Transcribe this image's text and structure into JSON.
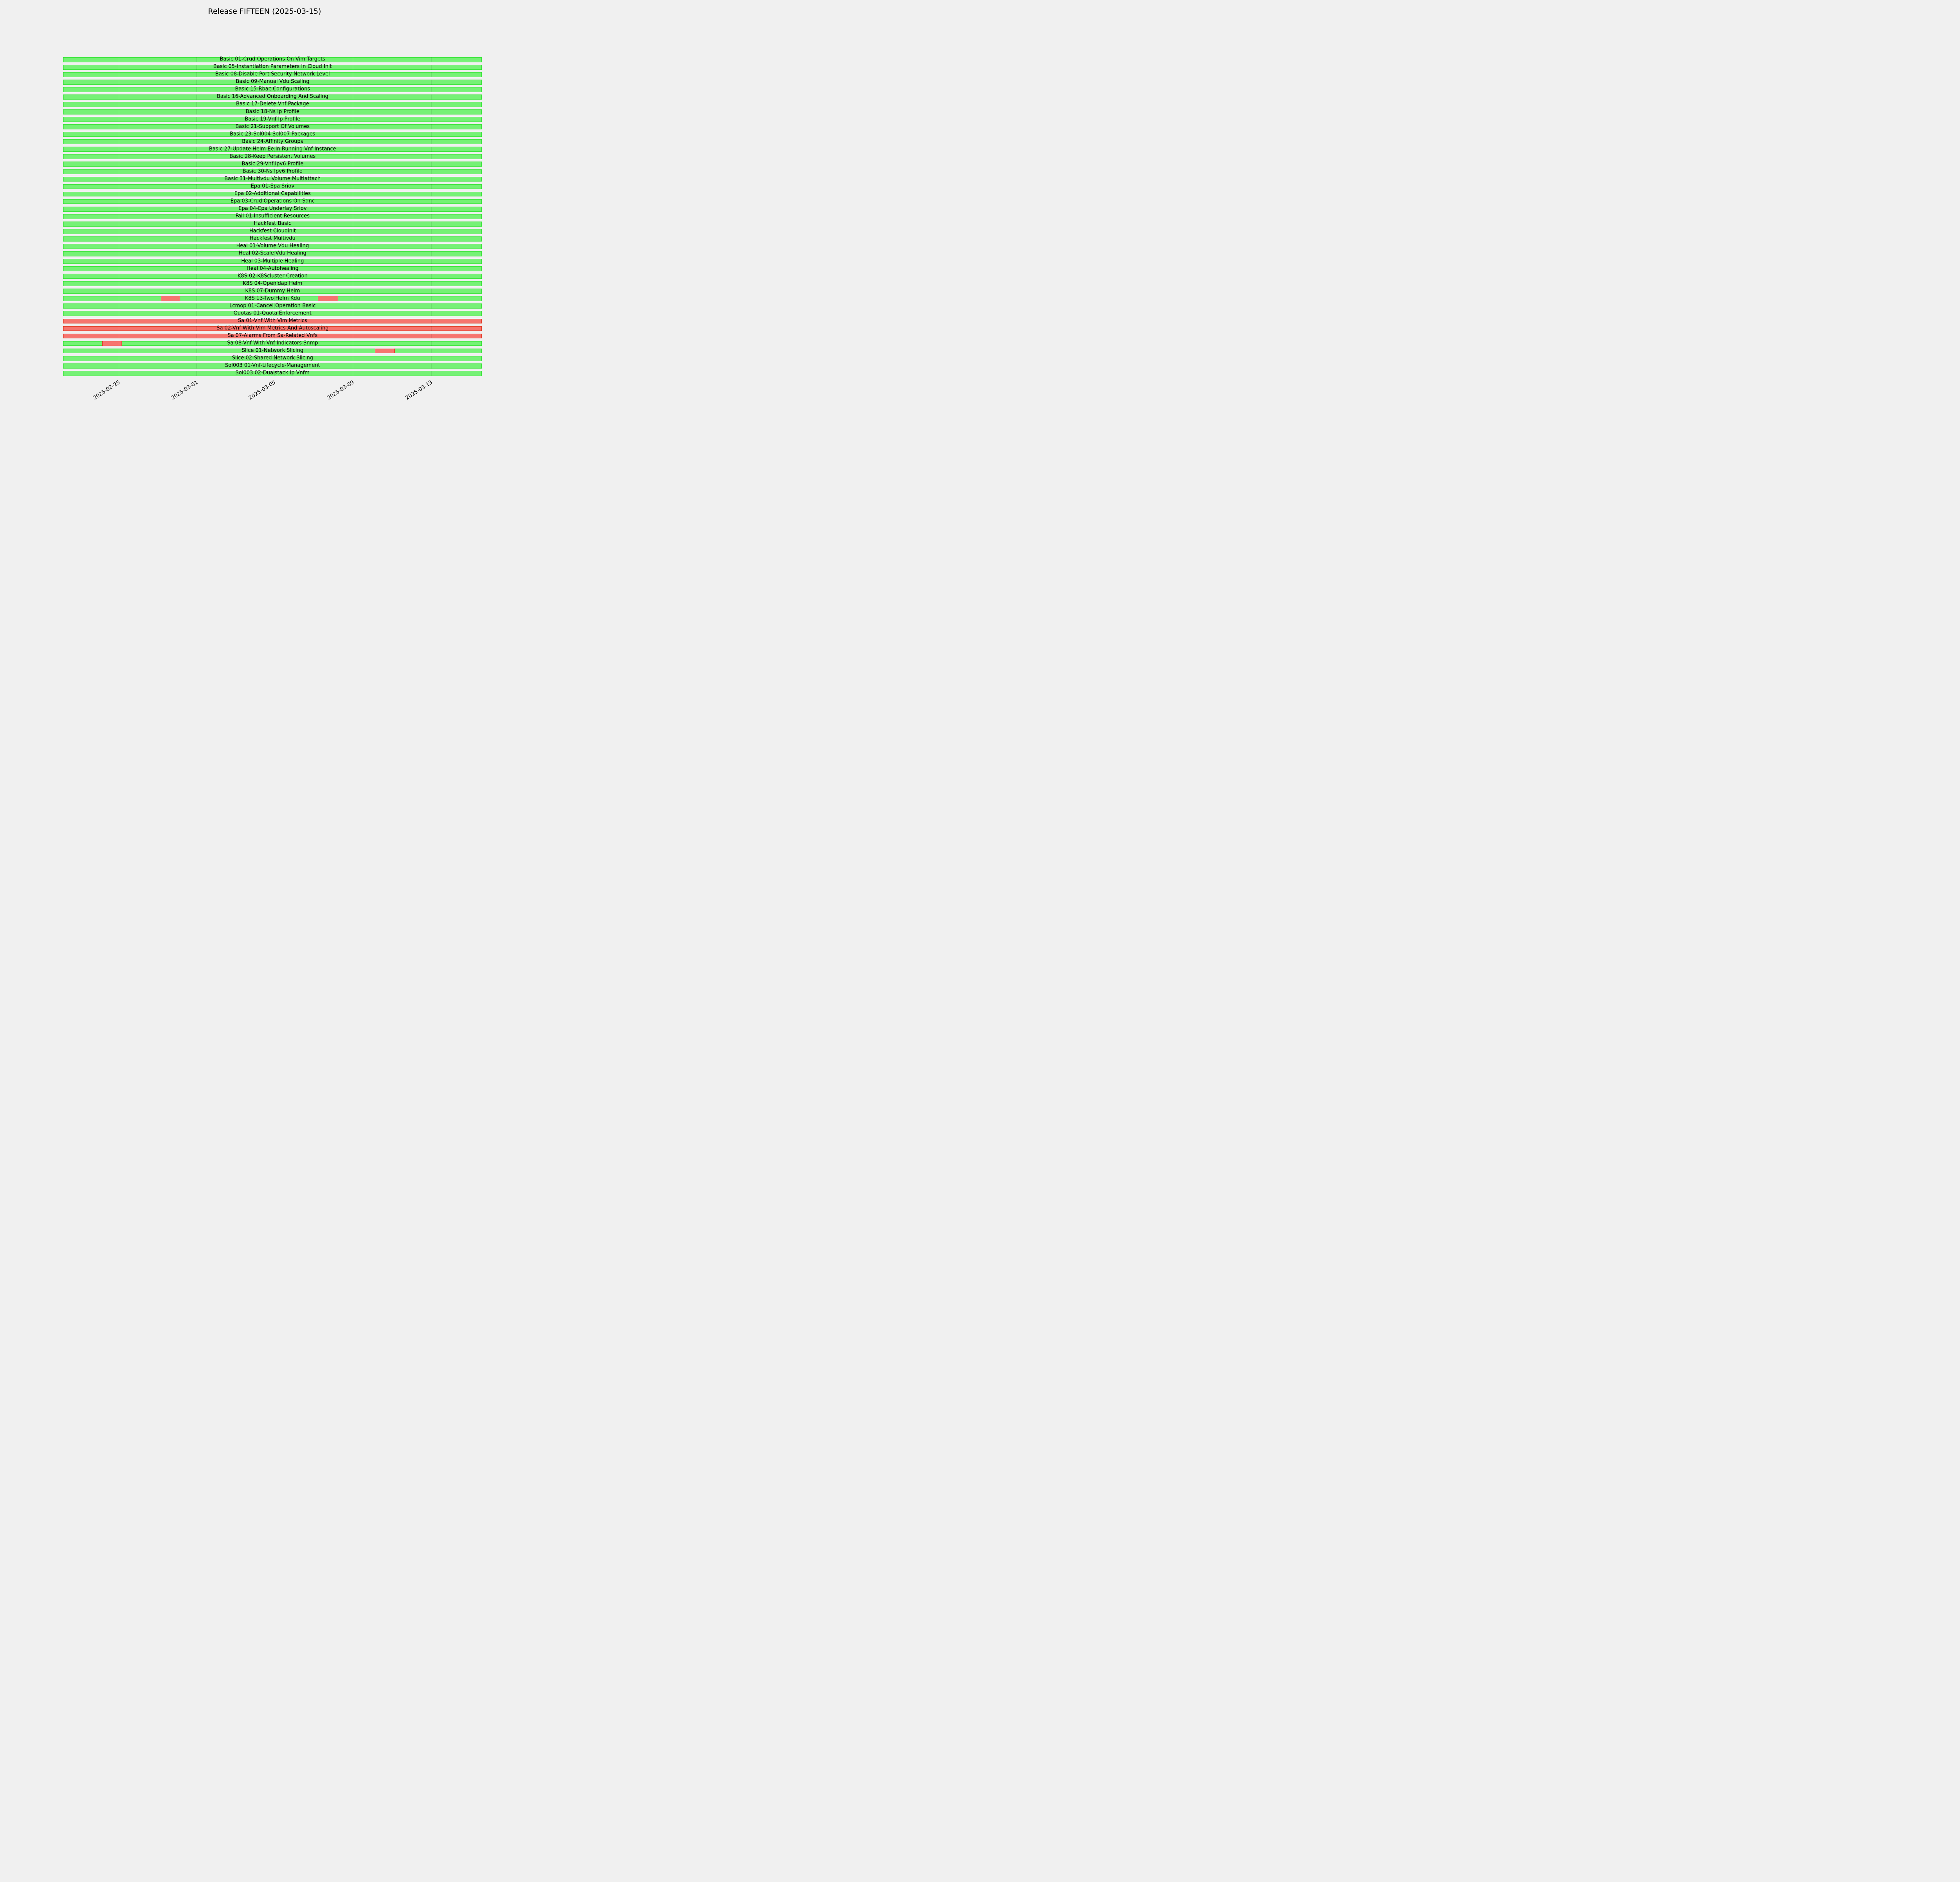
{
  "figure": {
    "title": "Release FIFTEEN (2025-03-15)",
    "background_color": "#F0F0F0"
  },
  "chart_data": {
    "type": "bar",
    "subtype": "gantt-status-timeline",
    "title": "Release FIFTEEN (2025-03-15)",
    "xlabel": "",
    "ylabel": "",
    "legend": "none",
    "grid": true,
    "x_axis": {
      "tick_rotation_deg": 30,
      "range_estimate": [
        "2025-02-22",
        "2025-03-16"
      ],
      "ticks": [
        {
          "label": "2025-02-25",
          "pos": 0.133
        },
        {
          "label": "2025-03-01",
          "pos": 0.319
        },
        {
          "label": "2025-03-05",
          "pos": 0.505
        },
        {
          "label": "2025-03-09",
          "pos": 0.692
        },
        {
          "label": "2025-03-13",
          "pos": 0.879
        }
      ]
    },
    "colors": {
      "pass_fill": "#76F176",
      "pass_edge": "#3BE43B",
      "fail_fill": "#F6756F",
      "fail_edge": "#E0402A",
      "gridline": "rgba(0,0,0,0.10)",
      "background": "#F0F0F0",
      "text": "#000000"
    },
    "rows": [
      {
        "label": "Basic 01-Crud Operations On Vim Targets",
        "fail_segments": []
      },
      {
        "label": "Basic 05-Instantiation Parameters In Cloud Init",
        "fail_segments": []
      },
      {
        "label": "Basic 08-Disable Port Security Network Level",
        "fail_segments": []
      },
      {
        "label": "Basic 09-Manual Vdu Scaling",
        "fail_segments": []
      },
      {
        "label": "Basic 15-Rbac Configurations",
        "fail_segments": []
      },
      {
        "label": "Basic 16-Advanced Onboarding And Scaling",
        "fail_segments": []
      },
      {
        "label": "Basic 17-Delete Vnf Package",
        "fail_segments": []
      },
      {
        "label": "Basic 18-Ns Ip Profile",
        "fail_segments": []
      },
      {
        "label": "Basic 19-Vnf Ip Profile",
        "fail_segments": []
      },
      {
        "label": "Basic 21-Support Of Volumes",
        "fail_segments": []
      },
      {
        "label": "Basic 23-Sol004 Sol007 Packages",
        "fail_segments": []
      },
      {
        "label": "Basic 24-Affinity Groups",
        "fail_segments": []
      },
      {
        "label": "Basic 27-Update Helm Ee In Running Vnf Instance",
        "fail_segments": []
      },
      {
        "label": "Basic 28-Keep Persistent Volumes",
        "fail_segments": []
      },
      {
        "label": "Basic 29-Vnf Ipv6 Profile",
        "fail_segments": []
      },
      {
        "label": "Basic 30-Ns Ipv6 Profile",
        "fail_segments": []
      },
      {
        "label": "Basic 31-Multivdu Volume Multiattach",
        "fail_segments": []
      },
      {
        "label": "Epa 01-Epa Sriov",
        "fail_segments": []
      },
      {
        "label": "Epa 02-Additional Capabilities",
        "fail_segments": []
      },
      {
        "label": "Epa 03-Crud Operations On Sdnc",
        "fail_segments": []
      },
      {
        "label": "Epa 04-Epa Underlay Sriov",
        "fail_segments": []
      },
      {
        "label": "Fail 01-Insufficient Resources",
        "fail_segments": []
      },
      {
        "label": "Hackfest Basic",
        "fail_segments": []
      },
      {
        "label": "Hackfest Cloudinit",
        "fail_segments": []
      },
      {
        "label": "Hackfest Multivdu",
        "fail_segments": []
      },
      {
        "label": "Heal 01-Volume Vdu Healing",
        "fail_segments": []
      },
      {
        "label": "Heal 02-Scale Vdu Healing",
        "fail_segments": []
      },
      {
        "label": "Heal 03-Multiple Healing",
        "fail_segments": []
      },
      {
        "label": "Heal 04-Autohealing",
        "fail_segments": []
      },
      {
        "label": "K8S 02-K8Scluster Creation",
        "fail_segments": []
      },
      {
        "label": "K8S 04-Openldap Helm",
        "fail_segments": []
      },
      {
        "label": "K8S 07-Dummy Helm",
        "fail_segments": []
      },
      {
        "label": "K8S 13-Two Helm Kdu",
        "fail_segments": [
          [
            0.233,
            0.28
          ],
          [
            0.608,
            0.657
          ]
        ],
        "approx_fail_dates": [
          "2025-02-27",
          "2025-03-07"
        ]
      },
      {
        "label": "Lcmop 01-Cancel Operation Basic",
        "fail_segments": []
      },
      {
        "label": "Quotas 01-Quota Enforcement",
        "fail_segments": []
      },
      {
        "label": "Sa 01-Vnf With Vim Metrics",
        "fail_segments": [
          [
            0,
            1
          ]
        ]
      },
      {
        "label": "Sa 02-Vnf With Vim Metrics And Autoscaling",
        "fail_segments": [
          [
            0,
            1
          ]
        ]
      },
      {
        "label": "Sa 07-Alarms From Sa-Related Vnfs",
        "fail_segments": [
          [
            0,
            1
          ]
        ]
      },
      {
        "label": "Sa 08-Vnf With Vnf Indicators Snmp",
        "fail_segments": [
          [
            0.093,
            0.14
          ]
        ],
        "approx_fail_dates": [
          "2025-02-24"
        ]
      },
      {
        "label": "Slice 01-Network Slicing",
        "fail_segments": [
          [
            0.744,
            0.792
          ]
        ],
        "approx_fail_dates": [
          "2025-03-10"
        ]
      },
      {
        "label": "Slice 02-Shared Network Slicing",
        "fail_segments": []
      },
      {
        "label": "Sol003 01-Vnf-Lifecycle-Management",
        "fail_segments": []
      },
      {
        "label": "Sol003 02-Dualstack Ip Vnfm",
        "fail_segments": []
      }
    ]
  }
}
